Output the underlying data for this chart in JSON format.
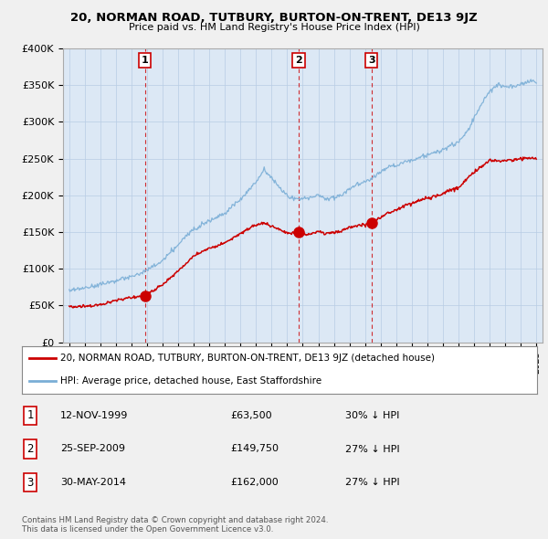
{
  "title": "20, NORMAN ROAD, TUTBURY, BURTON-ON-TRENT, DE13 9JZ",
  "subtitle": "Price paid vs. HM Land Registry's House Price Index (HPI)",
  "legend_line1": "20, NORMAN ROAD, TUTBURY, BURTON-ON-TRENT, DE13 9JZ (detached house)",
  "legend_line2": "HPI: Average price, detached house, East Staffordshire",
  "transaction_color": "#cc0000",
  "hpi_color": "#7aaed6",
  "transactions": [
    {
      "label": "1",
      "date_num": 1999.87,
      "price": 63500
    },
    {
      "label": "2",
      "date_num": 2009.73,
      "price": 149750
    },
    {
      "label": "3",
      "date_num": 2014.41,
      "price": 162000
    }
  ],
  "table_rows": [
    [
      "1",
      "12-NOV-1999",
      "£63,500",
      "30% ↓ HPI"
    ],
    [
      "2",
      "25-SEP-2009",
      "£149,750",
      "27% ↓ HPI"
    ],
    [
      "3",
      "30-MAY-2014",
      "£162,000",
      "27% ↓ HPI"
    ]
  ],
  "footer": "Contains HM Land Registry data © Crown copyright and database right 2024.\nThis data is licensed under the Open Government Licence v3.0.",
  "ylim": [
    0,
    400000
  ],
  "yticks": [
    0,
    50000,
    100000,
    150000,
    200000,
    250000,
    300000,
    350000,
    400000
  ],
  "ytick_labels": [
    "£0",
    "£50K",
    "£100K",
    "£150K",
    "£200K",
    "£250K",
    "£300K",
    "£350K",
    "£400K"
  ],
  "background_color": "#f0f0f0",
  "plot_bg_color": "#dce8f5"
}
